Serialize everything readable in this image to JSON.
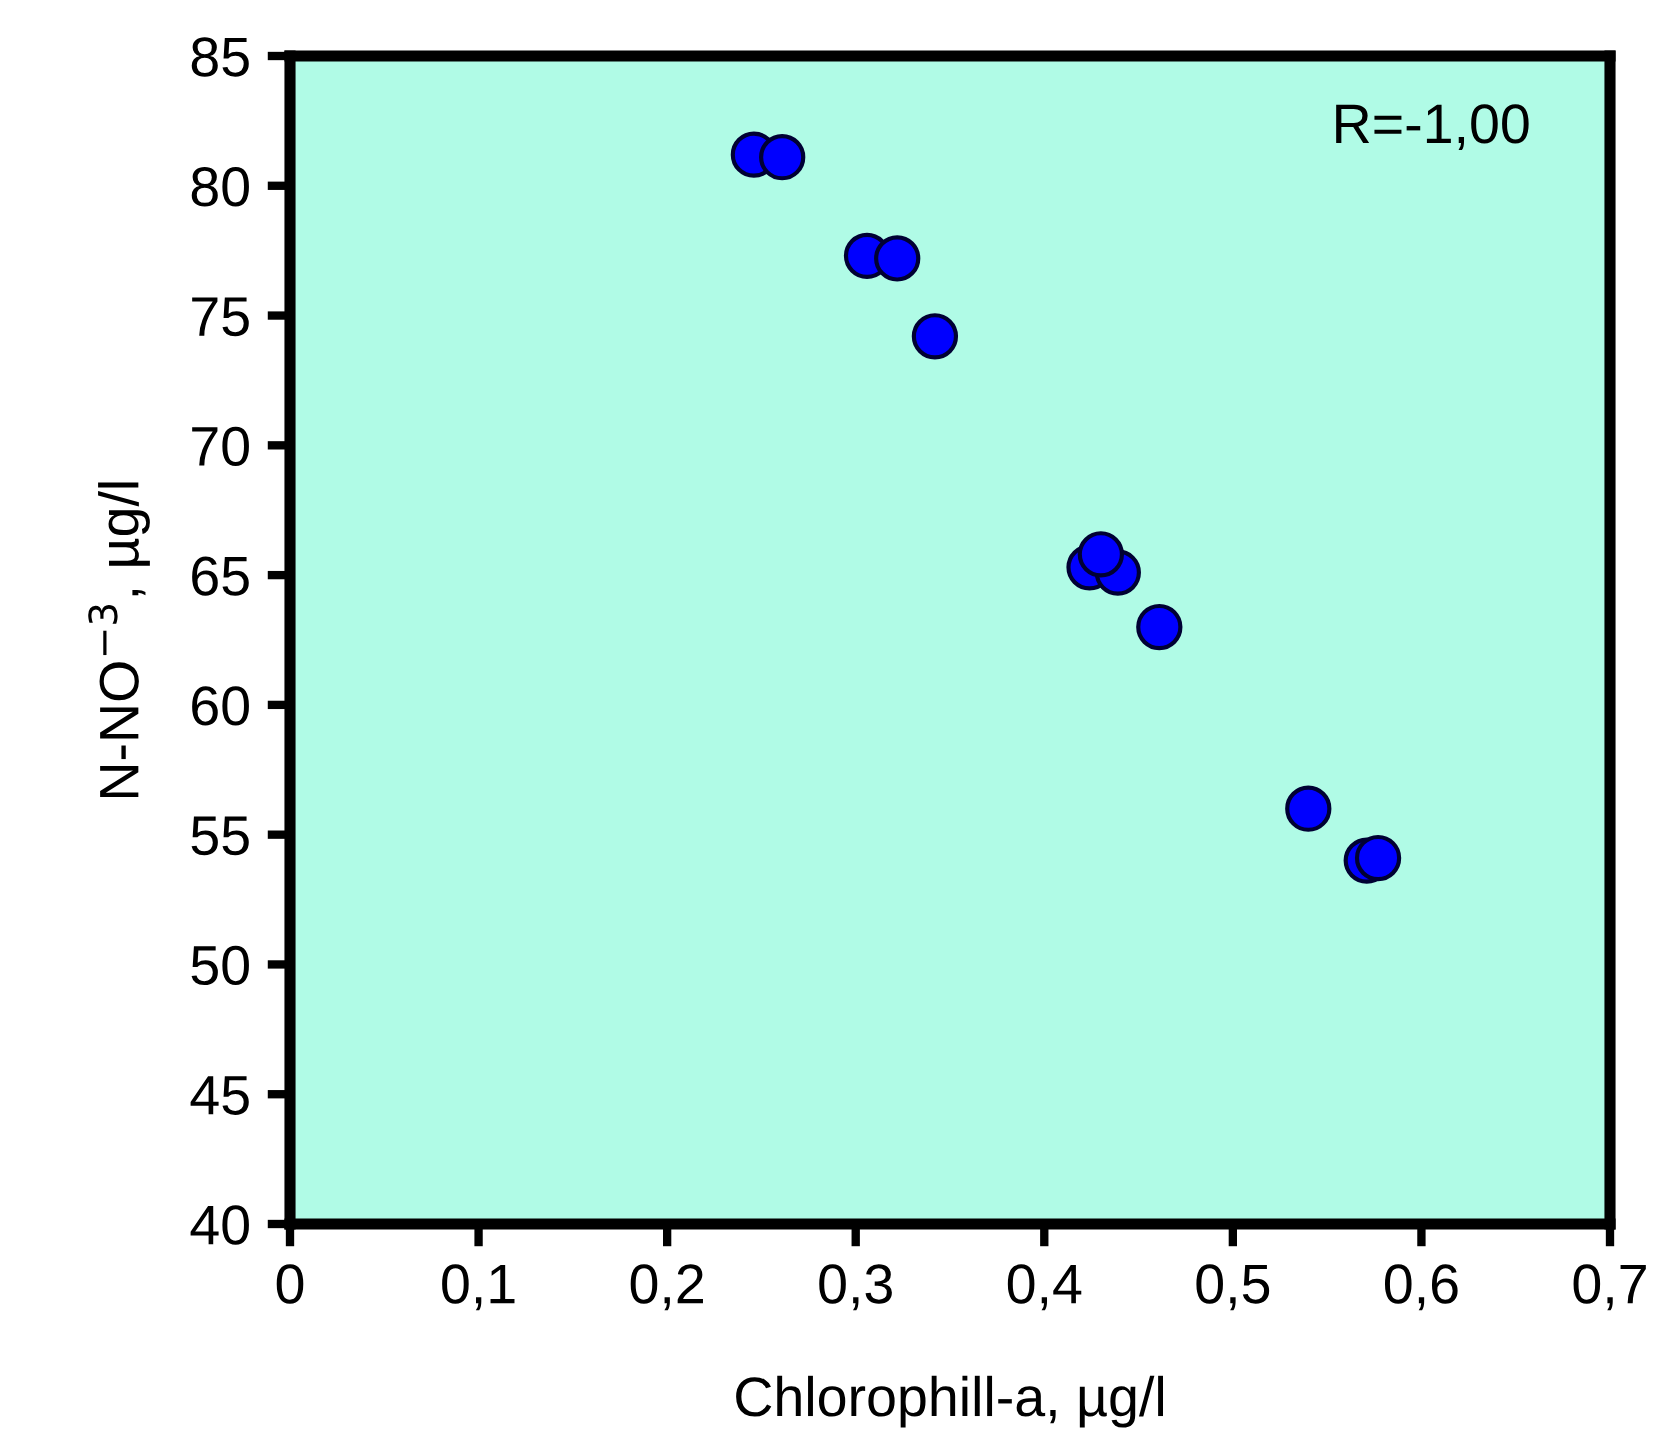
{
  "chart_data": {
    "type": "scatter",
    "xlabel": "Chlorophill-a, µg/l",
    "ylabel": "N-NO$^{−3}$, µg/l",
    "annotations": [
      "R=-1,00"
    ],
    "x": [
      0.246,
      0.261,
      0.306,
      0.322,
      0.342,
      0.424,
      0.439,
      0.43,
      0.461,
      0.54,
      0.571,
      0.577
    ],
    "series": [
      {
        "color": "#0000ff",
        "values": [
          81.2,
          81.1,
          77.3,
          77.2,
          74.2,
          65.3,
          65.1,
          65.8,
          63.0,
          56.0,
          54.0,
          54.1
        ]
      }
    ],
    "marker": "circle",
    "grid": false,
    "xlim": [
      0,
      0.7
    ],
    "xticks": [
      0,
      {
        "value": 0.1,
        "label": "0,1"
      },
      {
        "value": 0.2,
        "label": "0,2"
      },
      {
        "value": 0.3,
        "label": "0,3"
      },
      {
        "value": 0.4,
        "label": "0,4"
      },
      {
        "value": 0.5,
        "label": "0,5"
      },
      {
        "value": 0.6,
        "label": "0,6"
      },
      {
        "value": 0.7,
        "label": "0,7"
      }
    ],
    "ylim": [
      40,
      85
    ],
    "yticks": [
      40,
      45,
      50,
      55,
      60,
      65,
      70,
      75,
      80,
      85
    ]
  }
}
